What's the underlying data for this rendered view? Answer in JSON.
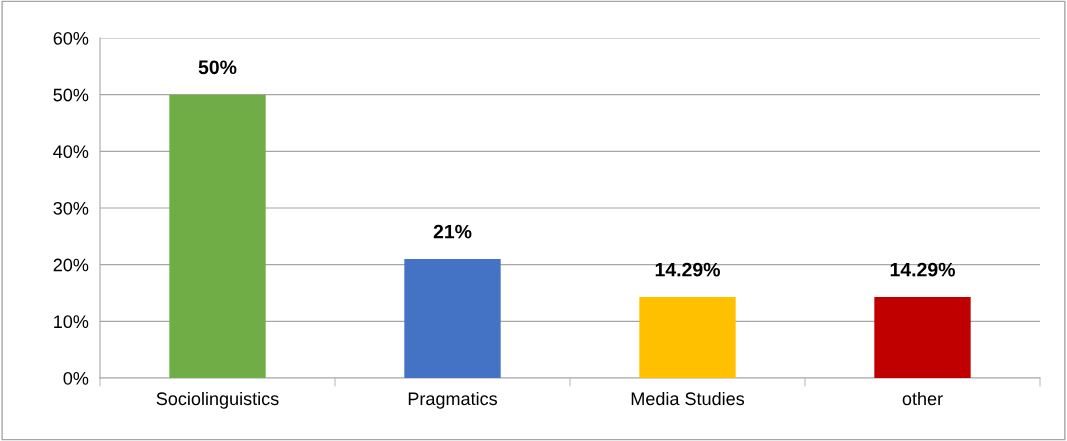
{
  "chart_data": {
    "type": "bar",
    "categories": [
      "Sociolinguistics",
      "Pragmatics",
      "Media Studies",
      "other"
    ],
    "values": [
      50,
      21,
      14.29,
      14.29
    ],
    "colors": [
      "#70ad47",
      "#4472c4",
      "#ffc000",
      "#c00000"
    ],
    "value_labels": [
      "50%",
      "21%",
      "14.29%",
      "14.29%"
    ],
    "ylim": [
      0,
      60
    ],
    "yticks": [
      {
        "value": 0,
        "label": "0%"
      },
      {
        "value": 10,
        "label": "10%"
      },
      {
        "value": 20,
        "label": "20%"
      },
      {
        "value": 30,
        "label": "30%"
      },
      {
        "value": 40,
        "label": "40%"
      },
      {
        "value": 50,
        "label": "50%"
      },
      {
        "value": 60,
        "label": "60%"
      }
    ],
    "grid": "y",
    "legend": false
  }
}
